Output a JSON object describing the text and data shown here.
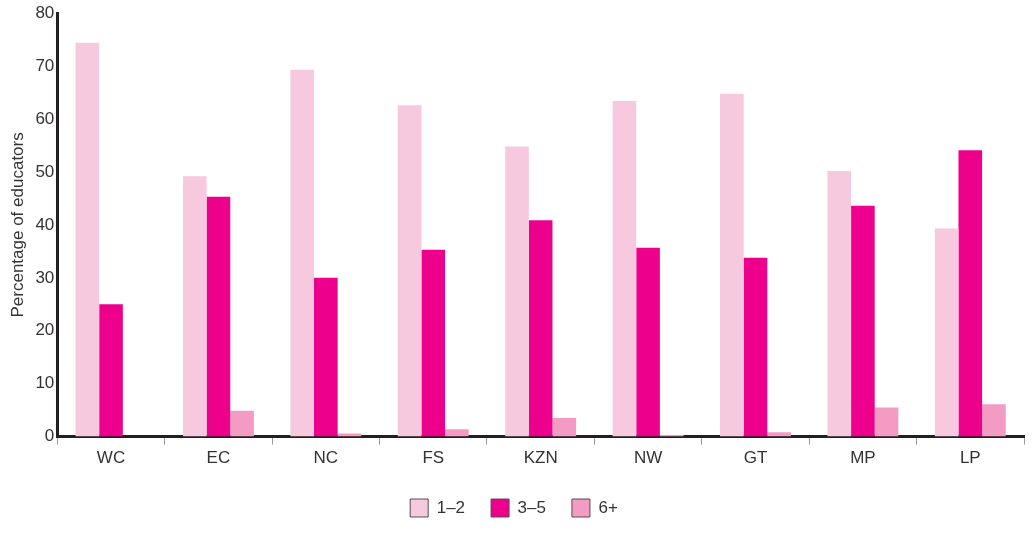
{
  "chart_data": {
    "type": "bar",
    "ylabel": "Percentage of educators",
    "categories": [
      "WC",
      "EC",
      "NC",
      "FS",
      "KZN",
      "NW",
      "GT",
      "MP",
      "LP"
    ],
    "series": [
      {
        "name": "1–2",
        "color": "#f7c9de",
        "values": [
          74.4,
          49.2,
          69.3,
          62.6,
          54.8,
          63.4,
          64.8,
          50.2,
          39.3
        ]
      },
      {
        "name": "3–5",
        "color": "#ec008c",
        "values": [
          25.0,
          45.3,
          30.0,
          35.3,
          40.9,
          35.7,
          33.8,
          43.6,
          54.1
        ]
      },
      {
        "name": "6+",
        "color": "#f39bc3",
        "values": [
          0,
          4.9,
          0.6,
          1.4,
          3.5,
          0.3,
          0.8,
          5.5,
          6.1
        ]
      }
    ],
    "ylim": [
      0,
      80
    ],
    "yticks": [
      0,
      10,
      20,
      30,
      40,
      50,
      60,
      70,
      80
    ],
    "grid": false,
    "legend": "bottom"
  }
}
